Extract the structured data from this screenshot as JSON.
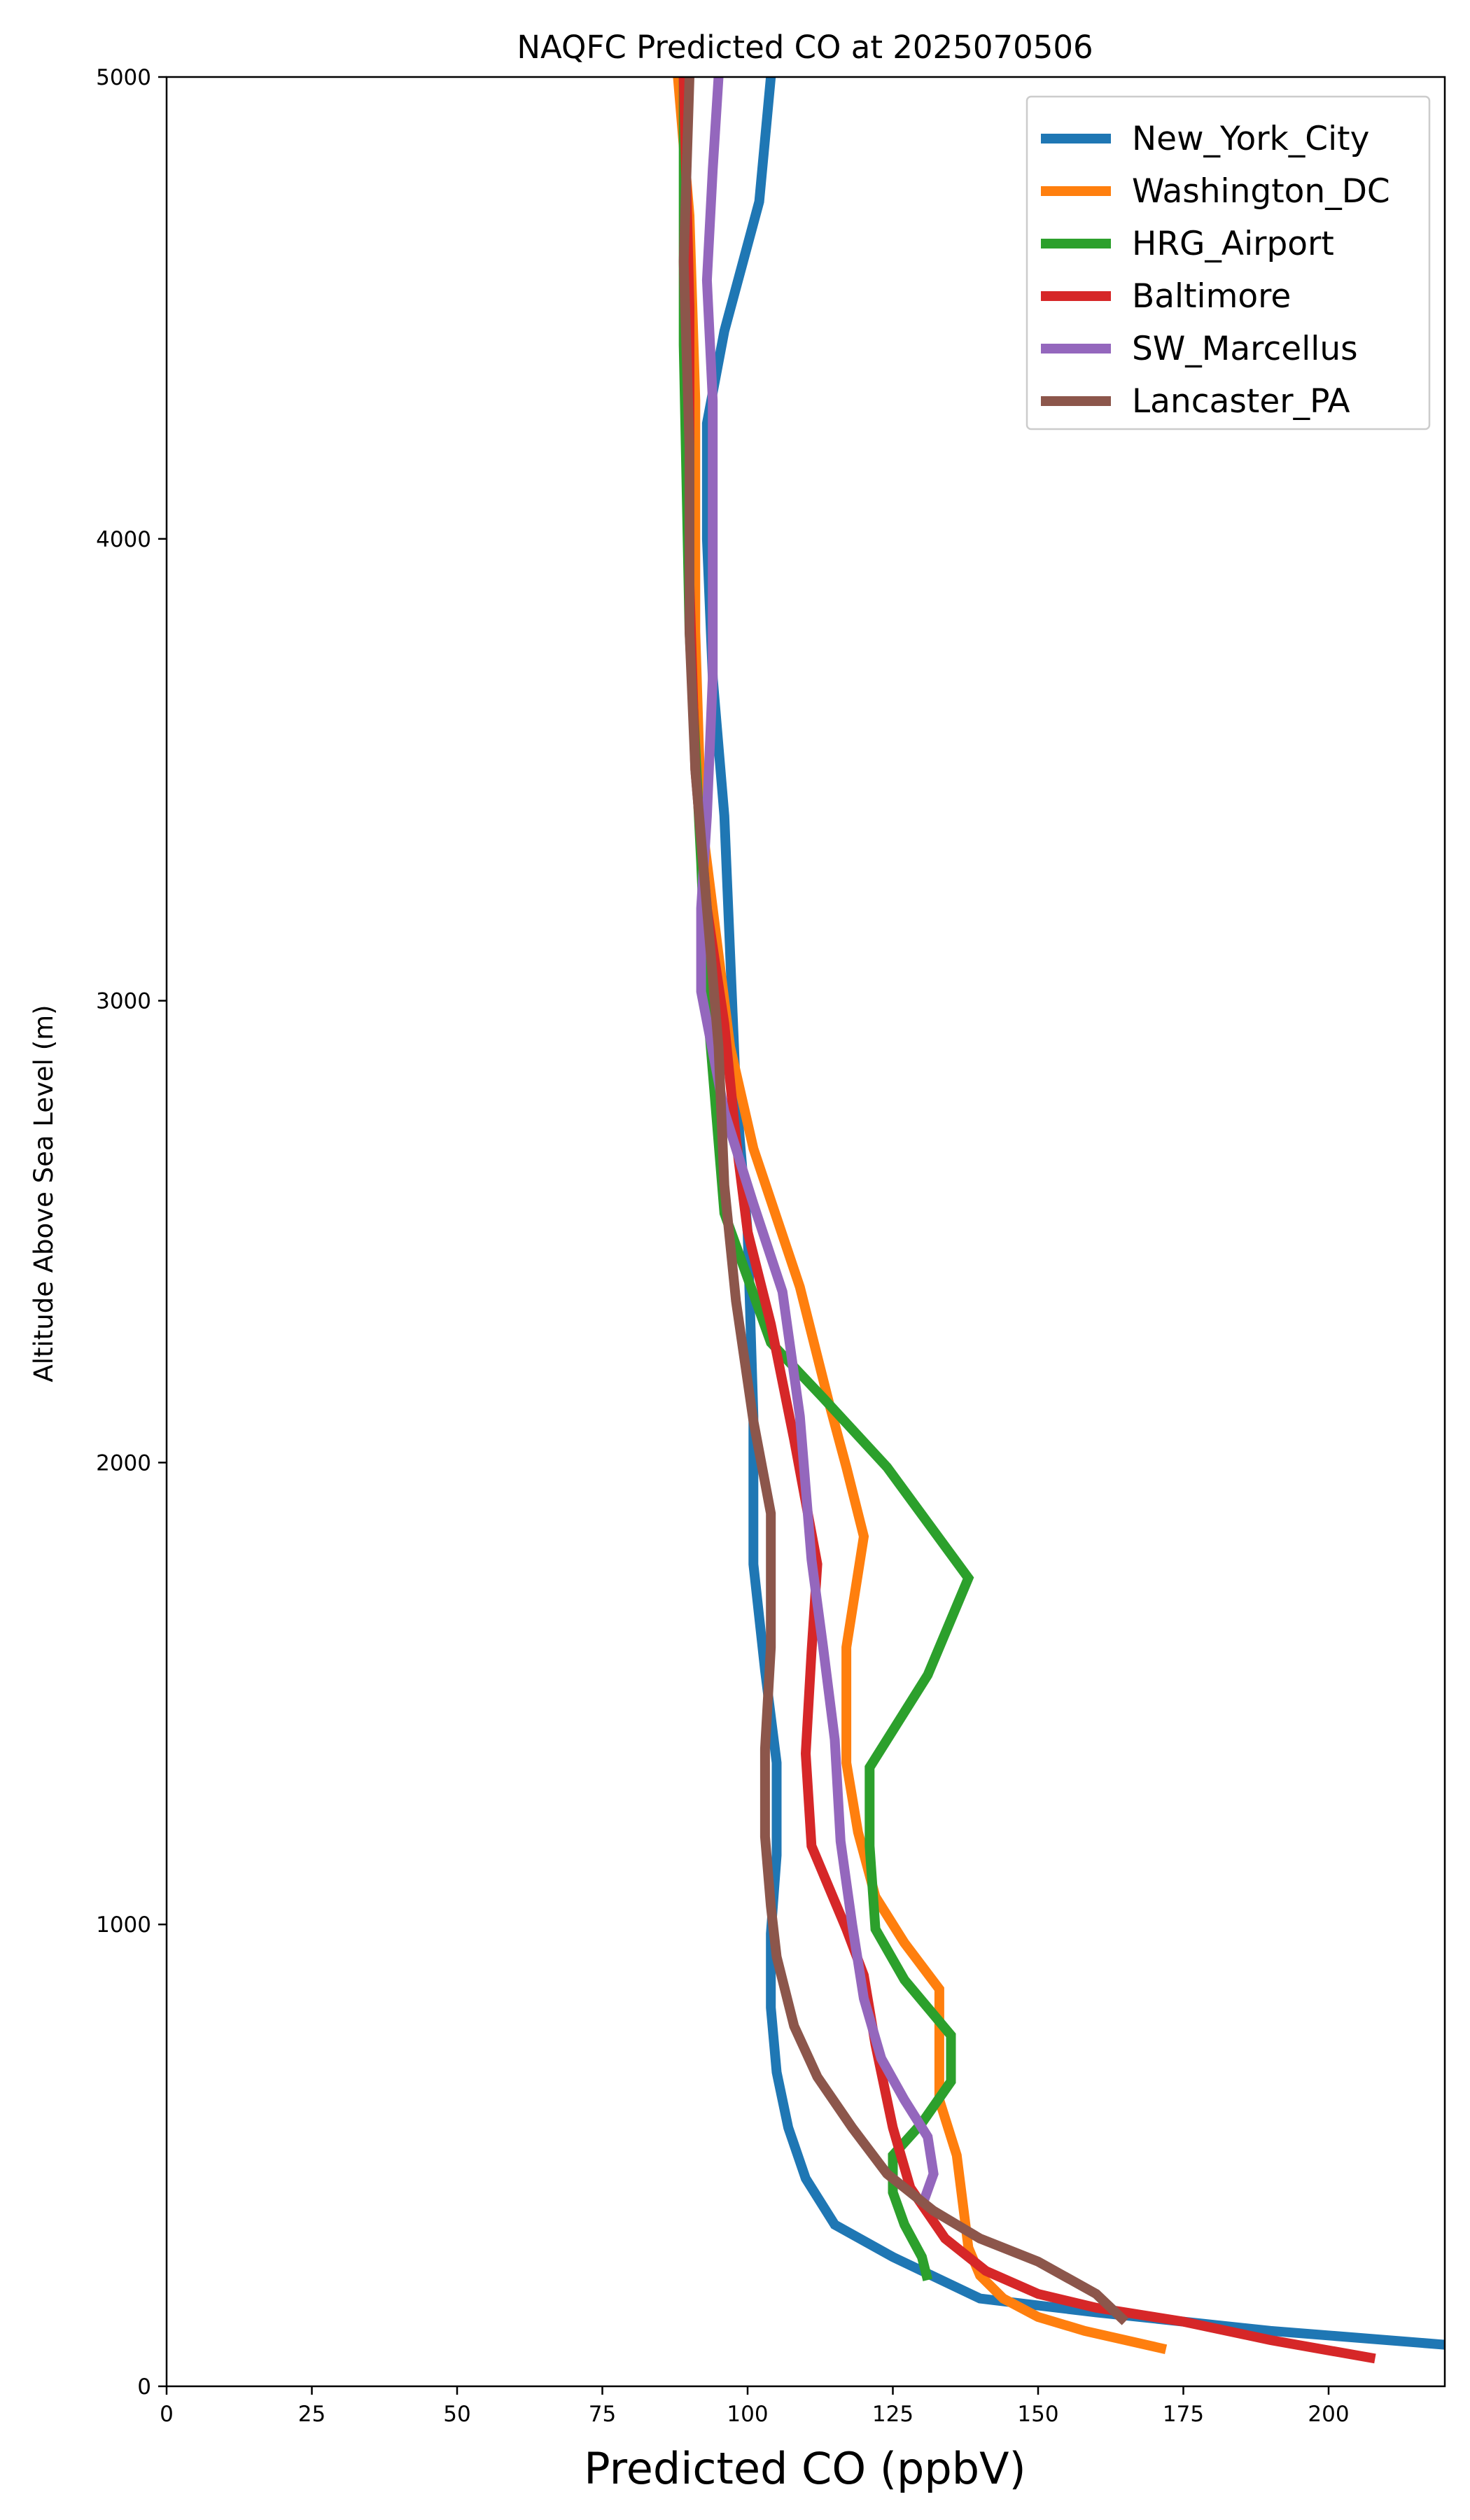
{
  "chart_data": {
    "type": "line",
    "title": "NAQFC Predicted CO at 2025070506",
    "xlabel": "Predicted CO (ppbV)",
    "ylabel": "Altitude Above Sea Level (m)",
    "xlim": [
      0,
      220
    ],
    "ylim": [
      0,
      5000
    ],
    "xticks": [
      "0",
      "25",
      "50",
      "75",
      "100",
      "125",
      "150",
      "175",
      "200"
    ],
    "yticks": [
      "0",
      "1000",
      "2000",
      "3000",
      "4000",
      "5000"
    ],
    "legend_position": "top-right",
    "grid": false,
    "series": [
      {
        "name": "New_York_City",
        "color": "#1f77b4",
        "points": [
          [
            220,
            90
          ],
          [
            190,
            120
          ],
          [
            160,
            160
          ],
          [
            140,
            190
          ],
          [
            125,
            280
          ],
          [
            115,
            350
          ],
          [
            110,
            450
          ],
          [
            107,
            560
          ],
          [
            105,
            680
          ],
          [
            104,
            820
          ],
          [
            104,
            980
          ],
          [
            105,
            1150
          ],
          [
            105,
            1350
          ],
          [
            103,
            1550
          ],
          [
            101,
            1780
          ],
          [
            101,
            2100
          ],
          [
            100,
            2500
          ],
          [
            98,
            2800
          ],
          [
            97,
            3100
          ],
          [
            96,
            3400
          ],
          [
            94,
            3700
          ],
          [
            93,
            4000
          ],
          [
            93,
            4250
          ],
          [
            96,
            4450
          ],
          [
            102,
            4730
          ],
          [
            104,
            5000
          ]
        ]
      },
      {
        "name": "Washington_DC",
        "color": "#ff7f0e",
        "points": [
          [
            172,
            80
          ],
          [
            158,
            120
          ],
          [
            150,
            150
          ],
          [
            144,
            190
          ],
          [
            140,
            240
          ],
          [
            138,
            300
          ],
          [
            137,
            400
          ],
          [
            136,
            500
          ],
          [
            133,
            620
          ],
          [
            133,
            740
          ],
          [
            133,
            860
          ],
          [
            127,
            960
          ],
          [
            122,
            1060
          ],
          [
            119,
            1200
          ],
          [
            117,
            1350
          ],
          [
            117,
            1480
          ],
          [
            117,
            1600
          ],
          [
            120,
            1840
          ],
          [
            117,
            1990
          ],
          [
            114,
            2130
          ],
          [
            109,
            2380
          ],
          [
            101,
            2680
          ],
          [
            97,
            2900
          ],
          [
            95,
            3100
          ],
          [
            92,
            3400
          ],
          [
            91,
            3800
          ],
          [
            91,
            4300
          ],
          [
            90,
            4700
          ],
          [
            88,
            5000
          ]
        ]
      },
      {
        "name": "HRG_Airport",
        "color": "#2ca02c",
        "points": [
          [
            131,
            230
          ],
          [
            130,
            280
          ],
          [
            127,
            350
          ],
          [
            125,
            420
          ],
          [
            125,
            500
          ],
          [
            130,
            570
          ],
          [
            135,
            660
          ],
          [
            135,
            760
          ],
          [
            127,
            880
          ],
          [
            122,
            990
          ],
          [
            121,
            1170
          ],
          [
            121,
            1340
          ],
          [
            131,
            1540
          ],
          [
            138,
            1750
          ],
          [
            124,
            1990
          ],
          [
            113,
            2140
          ],
          [
            104,
            2260
          ],
          [
            100,
            2400
          ],
          [
            96,
            2540
          ],
          [
            93,
            3000
          ],
          [
            92,
            3300
          ],
          [
            90,
            3800
          ],
          [
            89,
            4420
          ],
          [
            89,
            5000
          ]
        ]
      },
      {
        "name": "Baltimore",
        "color": "#d62728",
        "points": [
          [
            208,
            60
          ],
          [
            190,
            100
          ],
          [
            175,
            140
          ],
          [
            160,
            170
          ],
          [
            150,
            200
          ],
          [
            141,
            250
          ],
          [
            134,
            320
          ],
          [
            128,
            430
          ],
          [
            125,
            560
          ],
          [
            122,
            740
          ],
          [
            120,
            890
          ],
          [
            117,
            990
          ],
          [
            114,
            1080
          ],
          [
            111,
            1170
          ],
          [
            110,
            1370
          ],
          [
            111,
            1590
          ],
          [
            112,
            1780
          ],
          [
            108,
            2050
          ],
          [
            104,
            2300
          ],
          [
            100,
            2500
          ],
          [
            98,
            2700
          ],
          [
            96,
            2950
          ],
          [
            93,
            3200
          ],
          [
            91,
            3500
          ],
          [
            90,
            3900
          ],
          [
            90,
            4500
          ],
          [
            89,
            5000
          ]
        ]
      },
      {
        "name": "SW_Marcellus",
        "color": "#9467bd",
        "points": [
          [
            130,
            390
          ],
          [
            132,
            460
          ],
          [
            131,
            540
          ],
          [
            127,
            620
          ],
          [
            123,
            710
          ],
          [
            120,
            840
          ],
          [
            118,
            1000
          ],
          [
            116,
            1180
          ],
          [
            115,
            1400
          ],
          [
            113,
            1600
          ],
          [
            111,
            1790
          ],
          [
            109,
            2100
          ],
          [
            106,
            2370
          ],
          [
            101,
            2560
          ],
          [
            96,
            2760
          ],
          [
            92,
            3020
          ],
          [
            92,
            3200
          ],
          [
            93,
            3400
          ],
          [
            94,
            3700
          ],
          [
            94,
            4000
          ],
          [
            94,
            4300
          ],
          [
            93,
            4560
          ],
          [
            94,
            4800
          ],
          [
            95,
            5000
          ]
        ]
      },
      {
        "name": "Lancaster_PA",
        "color": "#8c564b",
        "points": [
          [
            165,
            140
          ],
          [
            160,
            200
          ],
          [
            150,
            270
          ],
          [
            140,
            320
          ],
          [
            132,
            380
          ],
          [
            124,
            460
          ],
          [
            118,
            560
          ],
          [
            112,
            670
          ],
          [
            108,
            780
          ],
          [
            105,
            930
          ],
          [
            104,
            1040
          ],
          [
            103,
            1190
          ],
          [
            103,
            1380
          ],
          [
            104,
            1600
          ],
          [
            104,
            1890
          ],
          [
            101,
            2090
          ],
          [
            98,
            2350
          ],
          [
            96,
            2600
          ],
          [
            95,
            2900
          ],
          [
            93,
            3200
          ],
          [
            91,
            3500
          ],
          [
            90,
            3800
          ],
          [
            90,
            4200
          ],
          [
            89,
            4600
          ],
          [
            90,
            5000
          ]
        ]
      }
    ]
  }
}
